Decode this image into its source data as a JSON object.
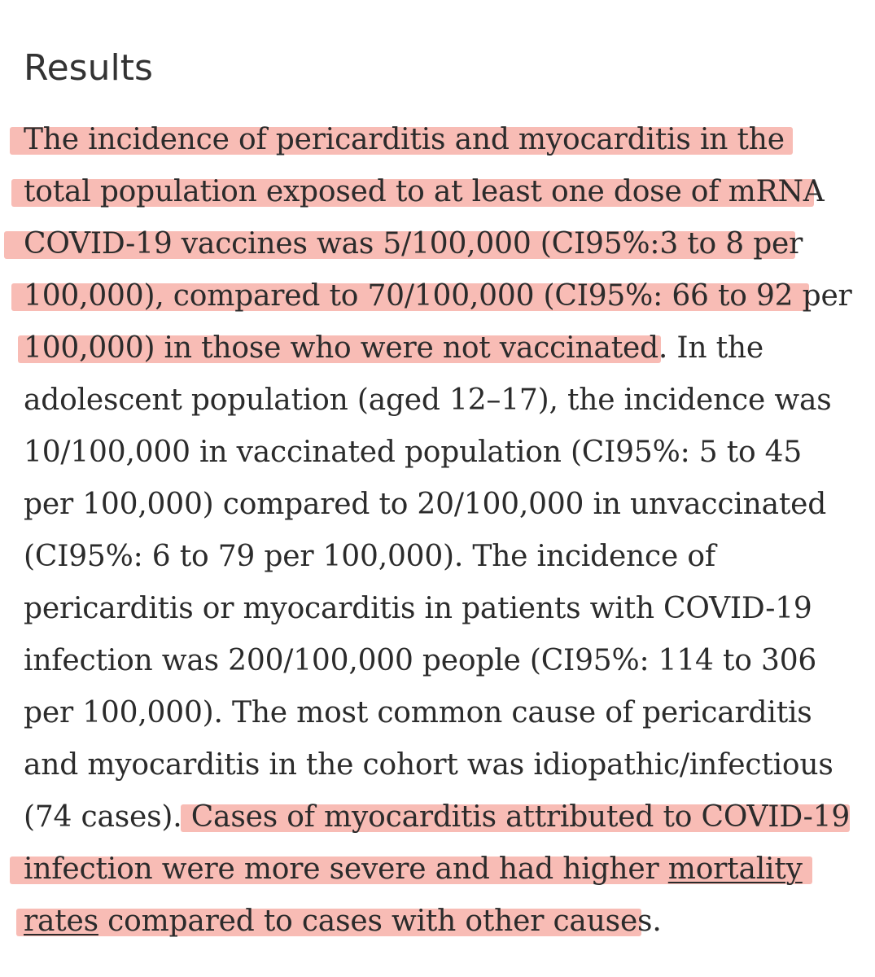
{
  "section": {
    "heading": "Results"
  },
  "paragraph": {
    "lines": [
      "The incidence of pericarditis and myocarditis in the",
      "total population exposed to at least one dose of mRNA",
      "COVID-19 vaccines was 5/100,000 (CI95%:3 to 8 per",
      "100,000), compared to 70/100,000 (CI95%: 66 to 92 per",
      "100,000) in those who were not vaccinated. In the",
      "adolescent population (aged 12–17), the incidence was",
      "10/100,000 in vaccinated population (CI95%: 5 to 45",
      "per 100,000) compared to 20/100,000 in unvaccinated",
      "(CI95%: 6 to 79 per 100,000). The incidence of",
      "pericarditis or myocarditis in patients with COVID-19",
      "infection was 200/100,000 people (CI95%: 114 to 306",
      "per 100,000). The most common cause of pericarditis",
      "and myocarditis in the cohort was idiopathic/infectious",
      "(74 cases). Cases of myocarditis attributed to COVID-19",
      "infection were more severe and had higher ",
      "compared to cases with other causes."
    ],
    "link_part1": "mortality",
    "link_part2": "rates"
  },
  "colors": {
    "highlight": "#f7b0a8",
    "text": "#2b2b2b"
  }
}
